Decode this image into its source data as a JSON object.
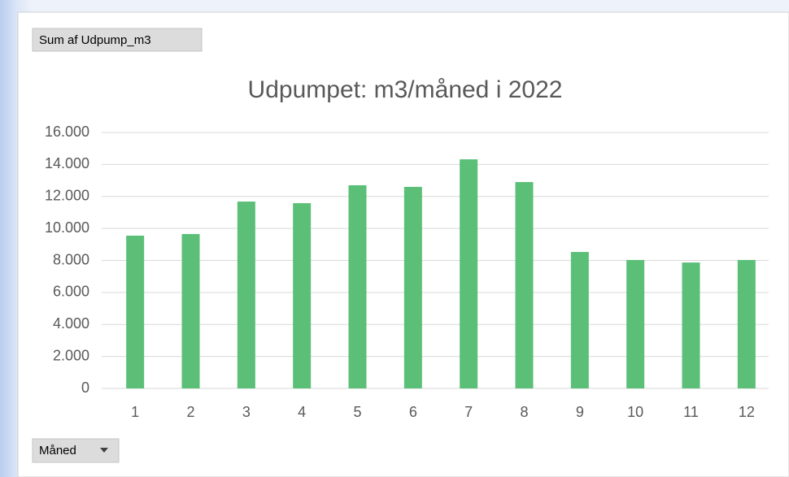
{
  "chart_data": {
    "type": "bar",
    "title": "Udpumpet: m3/måned i 2022",
    "categories": [
      "1",
      "2",
      "3",
      "4",
      "5",
      "6",
      "7",
      "8",
      "9",
      "10",
      "11",
      "12"
    ],
    "values": [
      9550,
      9650,
      11680,
      11580,
      12700,
      12600,
      14320,
      12900,
      8530,
      8030,
      7870,
      8030
    ],
    "color": "#5bbf78",
    "ylim": [
      0,
      16000
    ],
    "yticks": [
      0,
      {
        "value": 2000,
        "label": "2.000"
      },
      {
        "value": 4000,
        "label": "4.000"
      },
      {
        "value": 6000,
        "label": "6.000"
      },
      {
        "value": 8000,
        "label": "8.000"
      },
      {
        "value": 10000,
        "label": "10.000"
      },
      {
        "value": 12000,
        "label": "12.000"
      },
      {
        "value": 14000,
        "label": "14.000"
      },
      {
        "value": 16000,
        "label": "16.000"
      }
    ],
    "grid": true
  },
  "field_buttons": {
    "value_field": "Sum af Udpump_m3",
    "axis_field": "Måned"
  }
}
